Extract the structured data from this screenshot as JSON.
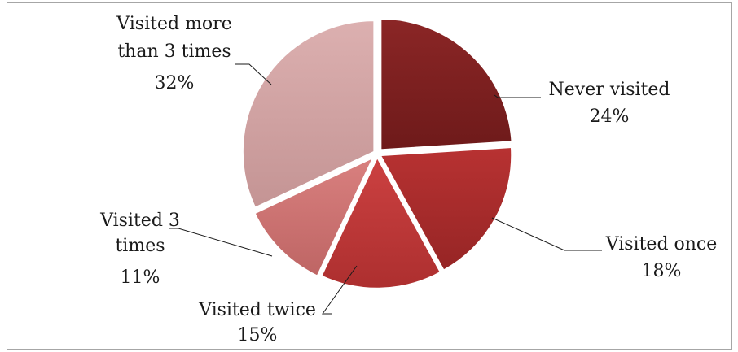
{
  "chart_data": {
    "type": "pie",
    "title": "",
    "legend": "none",
    "slices": [
      {
        "label_lines": [
          "Never visited"
        ],
        "value": 24,
        "value_label": "24%",
        "color": "#8b2626",
        "color_dark": "#6e1a1a"
      },
      {
        "label_lines": [
          "Visited once"
        ],
        "value": 18,
        "value_label": "18%",
        "color": "#b83232",
        "color_dark": "#962525"
      },
      {
        "label_lines": [
          "Visited twice"
        ],
        "value": 15,
        "value_label": "15%",
        "color": "#cc4141",
        "color_dark": "#ad2f2f"
      },
      {
        "label_lines": [
          "Visited 3",
          "times"
        ],
        "value": 11,
        "value_label": "11%",
        "color": "#d9807f",
        "color_dark": "#be6564"
      },
      {
        "label_lines": [
          "Visited more",
          "than 3 times"
        ],
        "value": 32,
        "value_label": "32%",
        "color": "#dcb0b0",
        "color_dark": "#c49494"
      }
    ]
  }
}
